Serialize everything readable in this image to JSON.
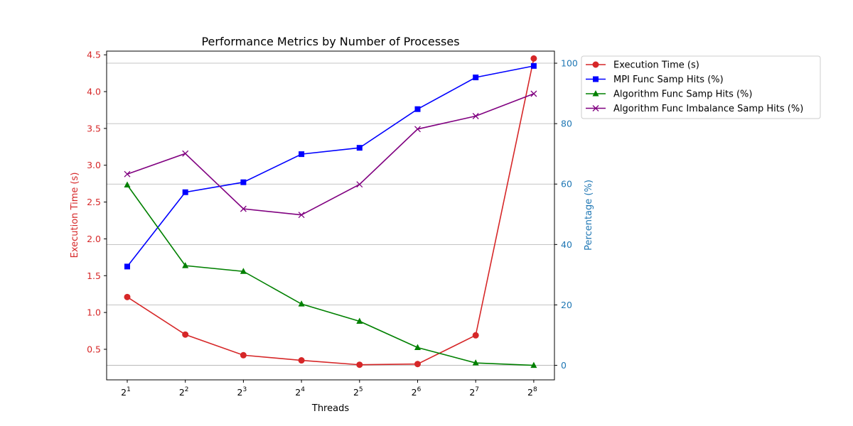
{
  "chart_data": {
    "type": "line",
    "title": "Performance Metrics by Number of Processes",
    "xlabel": "Threads",
    "ylabel_left": "Execution Time (s)",
    "ylabel_right": "Percentage (%)",
    "x_tick_base": "2",
    "x_exponents": [
      1,
      2,
      3,
      4,
      5,
      6,
      7,
      8
    ],
    "x": [
      2,
      4,
      8,
      16,
      32,
      64,
      128,
      256
    ],
    "y_left_ticks": [
      "0.5",
      "1.0",
      "1.5",
      "2.0",
      "2.5",
      "3.0",
      "3.5",
      "4.0",
      "4.5"
    ],
    "y_right_ticks": [
      "0",
      "20",
      "40",
      "60",
      "80",
      "100"
    ],
    "ylim_left": [
      0.085,
      4.55
    ],
    "ylim_right": [
      -4.8,
      104.0
    ],
    "grid": "right-axis horizontal",
    "legend_position": "outside top-right",
    "left_axis_color": "#d62728",
    "right_axis_color": "#1f77b4",
    "series": [
      {
        "name": "Execution Time (s)",
        "axis": "left",
        "color": "#d62728",
        "marker": "circle",
        "values": [
          1.21,
          0.7,
          0.42,
          0.35,
          0.29,
          0.3,
          0.69,
          4.45
        ]
      },
      {
        "name": "MPI Func Samp Hits (%)",
        "axis": "right",
        "color": "#0000ff",
        "marker": "square",
        "values": [
          32.7,
          57.3,
          60.6,
          69.9,
          72.0,
          84.8,
          95.3,
          99.1
        ]
      },
      {
        "name": "Algorithm Func Samp Hits (%)",
        "axis": "right",
        "color": "#008000",
        "marker": "triangle",
        "values": [
          59.7,
          33.0,
          31.1,
          20.3,
          14.6,
          5.9,
          0.8,
          0.0
        ]
      },
      {
        "name": "Algorithm Func Imbalance Samp Hits (%)",
        "axis": "right",
        "color": "#800080",
        "marker": "x",
        "values": [
          63.3,
          70.1,
          51.8,
          49.8,
          59.9,
          78.2,
          82.5,
          89.9
        ]
      }
    ]
  }
}
